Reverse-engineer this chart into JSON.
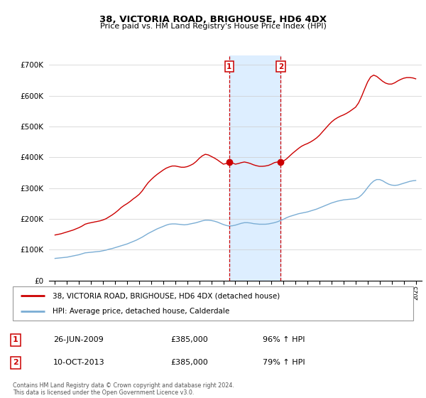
{
  "title": "38, VICTORIA ROAD, BRIGHOUSE, HD6 4DX",
  "subtitle": "Price paid vs. HM Land Registry's House Price Index (HPI)",
  "ylabel_ticks": [
    "£0",
    "£100K",
    "£200K",
    "£300K",
    "£400K",
    "£500K",
    "£600K",
    "£700K"
  ],
  "ytick_vals": [
    0,
    100000,
    200000,
    300000,
    400000,
    500000,
    600000,
    700000
  ],
  "ylim": [
    0,
    730000
  ],
  "xlim_start": 1994.5,
  "xlim_end": 2025.5,
  "transaction1_x": 2009.483,
  "transaction1_y": 385000,
  "transaction2_x": 2013.777,
  "transaction2_y": 385000,
  "legend_line1": "38, VICTORIA ROAD, BRIGHOUSE, HD6 4DX (detached house)",
  "legend_line2": "HPI: Average price, detached house, Calderdale",
  "annotation1_date": "26-JUN-2009",
  "annotation1_price": "£385,000",
  "annotation1_hpi": "96% ↑ HPI",
  "annotation2_date": "10-OCT-2013",
  "annotation2_price": "£385,000",
  "annotation2_hpi": "79% ↑ HPI",
  "footer": "Contains HM Land Registry data © Crown copyright and database right 2024.\nThis data is licensed under the Open Government Licence v3.0.",
  "red_color": "#cc0000",
  "blue_color": "#7aadd4",
  "shading_color": "#ddeeff",
  "hpi_x": [
    1995.0,
    1995.25,
    1995.5,
    1995.75,
    1996.0,
    1996.25,
    1996.5,
    1996.75,
    1997.0,
    1997.25,
    1997.5,
    1997.75,
    1998.0,
    1998.25,
    1998.5,
    1998.75,
    1999.0,
    1999.25,
    1999.5,
    1999.75,
    2000.0,
    2000.25,
    2000.5,
    2000.75,
    2001.0,
    2001.25,
    2001.5,
    2001.75,
    2002.0,
    2002.25,
    2002.5,
    2002.75,
    2003.0,
    2003.25,
    2003.5,
    2003.75,
    2004.0,
    2004.25,
    2004.5,
    2004.75,
    2005.0,
    2005.25,
    2005.5,
    2005.75,
    2006.0,
    2006.25,
    2006.5,
    2006.75,
    2007.0,
    2007.25,
    2007.5,
    2007.75,
    2008.0,
    2008.25,
    2008.5,
    2008.75,
    2009.0,
    2009.25,
    2009.5,
    2009.75,
    2010.0,
    2010.25,
    2010.5,
    2010.75,
    2011.0,
    2011.25,
    2011.5,
    2011.75,
    2012.0,
    2012.25,
    2012.5,
    2012.75,
    2013.0,
    2013.25,
    2013.5,
    2013.75,
    2014.0,
    2014.25,
    2014.5,
    2014.75,
    2015.0,
    2015.25,
    2015.5,
    2015.75,
    2016.0,
    2016.25,
    2016.5,
    2016.75,
    2017.0,
    2017.25,
    2017.5,
    2017.75,
    2018.0,
    2018.25,
    2018.5,
    2018.75,
    2019.0,
    2019.25,
    2019.5,
    2019.75,
    2020.0,
    2020.25,
    2020.5,
    2020.75,
    2021.0,
    2021.25,
    2021.5,
    2021.75,
    2022.0,
    2022.25,
    2022.5,
    2022.75,
    2023.0,
    2023.25,
    2023.5,
    2023.75,
    2024.0,
    2024.25,
    2024.5,
    2024.75,
    2025.0
  ],
  "hpi_y": [
    72000,
    73000,
    74000,
    75000,
    76000,
    78000,
    80000,
    82000,
    84000,
    87000,
    90000,
    91000,
    92000,
    93000,
    94000,
    95000,
    97000,
    99000,
    102000,
    104000,
    107000,
    110000,
    113000,
    116000,
    119000,
    123000,
    127000,
    131000,
    136000,
    141000,
    147000,
    153000,
    158000,
    163000,
    168000,
    172000,
    176000,
    180000,
    183000,
    184000,
    184000,
    183000,
    182000,
    181000,
    182000,
    184000,
    186000,
    188000,
    191000,
    194000,
    196000,
    196000,
    195000,
    193000,
    190000,
    186000,
    182000,
    179000,
    177000,
    178000,
    180000,
    183000,
    186000,
    188000,
    188000,
    187000,
    185000,
    184000,
    183000,
    183000,
    183000,
    184000,
    186000,
    188000,
    191000,
    195000,
    199000,
    204000,
    208000,
    211000,
    214000,
    217000,
    219000,
    221000,
    223000,
    226000,
    229000,
    232000,
    236000,
    240000,
    244000,
    248000,
    252000,
    255000,
    258000,
    260000,
    262000,
    263000,
    264000,
    265000,
    266000,
    270000,
    278000,
    289000,
    302000,
    314000,
    323000,
    328000,
    328000,
    324000,
    318000,
    313000,
    310000,
    309000,
    310000,
    313000,
    316000,
    319000,
    322000,
    324000,
    325000
  ],
  "red_x": [
    1995.0,
    1995.25,
    1995.5,
    1995.75,
    1996.0,
    1996.25,
    1996.5,
    1996.75,
    1997.0,
    1997.25,
    1997.5,
    1997.75,
    1998.0,
    1998.25,
    1998.5,
    1998.75,
    1999.0,
    1999.25,
    1999.5,
    1999.75,
    2000.0,
    2000.25,
    2000.5,
    2000.75,
    2001.0,
    2001.25,
    2001.5,
    2001.75,
    2002.0,
    2002.25,
    2002.5,
    2002.75,
    2003.0,
    2003.25,
    2003.5,
    2003.75,
    2004.0,
    2004.25,
    2004.5,
    2004.75,
    2005.0,
    2005.25,
    2005.5,
    2005.75,
    2006.0,
    2006.25,
    2006.5,
    2006.75,
    2007.0,
    2007.25,
    2007.5,
    2007.75,
    2008.0,
    2008.25,
    2008.5,
    2008.75,
    2009.0,
    2009.25,
    2009.483,
    2009.75,
    2010.0,
    2010.25,
    2010.5,
    2010.75,
    2011.0,
    2011.25,
    2011.5,
    2011.75,
    2012.0,
    2012.25,
    2012.5,
    2012.75,
    2013.0,
    2013.25,
    2013.5,
    2013.777,
    2014.0,
    2014.25,
    2014.5,
    2014.75,
    2015.0,
    2015.25,
    2015.5,
    2015.75,
    2016.0,
    2016.25,
    2016.5,
    2016.75,
    2017.0,
    2017.25,
    2017.5,
    2017.75,
    2018.0,
    2018.25,
    2018.5,
    2018.75,
    2019.0,
    2019.25,
    2019.5,
    2019.75,
    2020.0,
    2020.25,
    2020.5,
    2020.75,
    2021.0,
    2021.25,
    2021.5,
    2021.75,
    2022.0,
    2022.25,
    2022.5,
    2022.75,
    2023.0,
    2023.25,
    2023.5,
    2023.75,
    2024.0,
    2024.25,
    2024.5,
    2024.75,
    2025.0
  ],
  "red_y": [
    148000,
    150000,
    152000,
    155000,
    158000,
    161000,
    164000,
    168000,
    172000,
    177000,
    183000,
    186000,
    188000,
    190000,
    192000,
    194000,
    197000,
    201000,
    207000,
    213000,
    220000,
    228000,
    237000,
    244000,
    250000,
    257000,
    265000,
    272000,
    280000,
    291000,
    305000,
    318000,
    328000,
    337000,
    345000,
    352000,
    359000,
    365000,
    369000,
    372000,
    372000,
    370000,
    368000,
    368000,
    370000,
    374000,
    379000,
    387000,
    397000,
    405000,
    410000,
    408000,
    403000,
    398000,
    392000,
    385000,
    378000,
    380000,
    385000,
    382000,
    378000,
    380000,
    383000,
    385000,
    383000,
    380000,
    376000,
    373000,
    371000,
    371000,
    372000,
    374000,
    378000,
    383000,
    385000,
    385000,
    388000,
    395000,
    404000,
    413000,
    421000,
    429000,
    436000,
    441000,
    445000,
    450000,
    456000,
    463000,
    472000,
    483000,
    494000,
    505000,
    515000,
    523000,
    529000,
    534000,
    538000,
    543000,
    549000,
    556000,
    563000,
    577000,
    598000,
    622000,
    645000,
    661000,
    667000,
    663000,
    655000,
    647000,
    641000,
    638000,
    638000,
    642000,
    648000,
    653000,
    657000,
    659000,
    659000,
    658000,
    655000
  ]
}
